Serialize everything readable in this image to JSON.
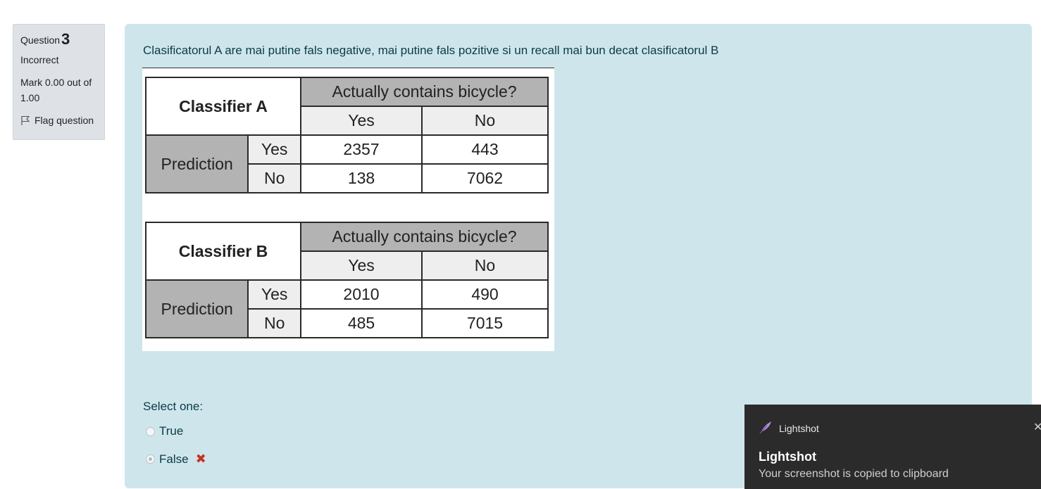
{
  "info": {
    "question_label": "Question",
    "question_number": "3",
    "state": "Incorrect",
    "grade": "Mark 0.00 out of 1.00",
    "flag_label": "Flag question"
  },
  "question": {
    "text": "Clasificatorul A are mai putine fals negative, mai putine fals pozitive si un recall mai bun decat clasificatorul B",
    "select_label": "Select one:",
    "options": [
      {
        "label": "True",
        "selected": false
      },
      {
        "label": "False",
        "selected": true,
        "mark": "✖"
      }
    ]
  },
  "tables": [
    {
      "title": "Classifier A",
      "header": "Actually contains bicycle?",
      "col_yes": "Yes",
      "col_no": "No",
      "row_group": "Prediction",
      "row_yes": "Yes",
      "row_no": "No",
      "tp": "2357",
      "fp": "443",
      "fn": "138",
      "tn": "7062"
    },
    {
      "title": "Classifier B",
      "header": "Actually contains bicycle?",
      "col_yes": "Yes",
      "col_no": "No",
      "row_group": "Prediction",
      "row_yes": "Yes",
      "row_no": "No",
      "tp": "2010",
      "fp": "490",
      "fn": "485",
      "tn": "7015"
    }
  ],
  "toast": {
    "app_name": "Lightshot",
    "title": "Lightshot",
    "message": "Your screenshot is copied to clipboard",
    "close": "✕"
  },
  "colors": {
    "panel_bg": "#cee6eb",
    "info_bg": "#dee2e6",
    "incorrect": "#ca3120",
    "toast_bg": "#2b2b2b"
  }
}
